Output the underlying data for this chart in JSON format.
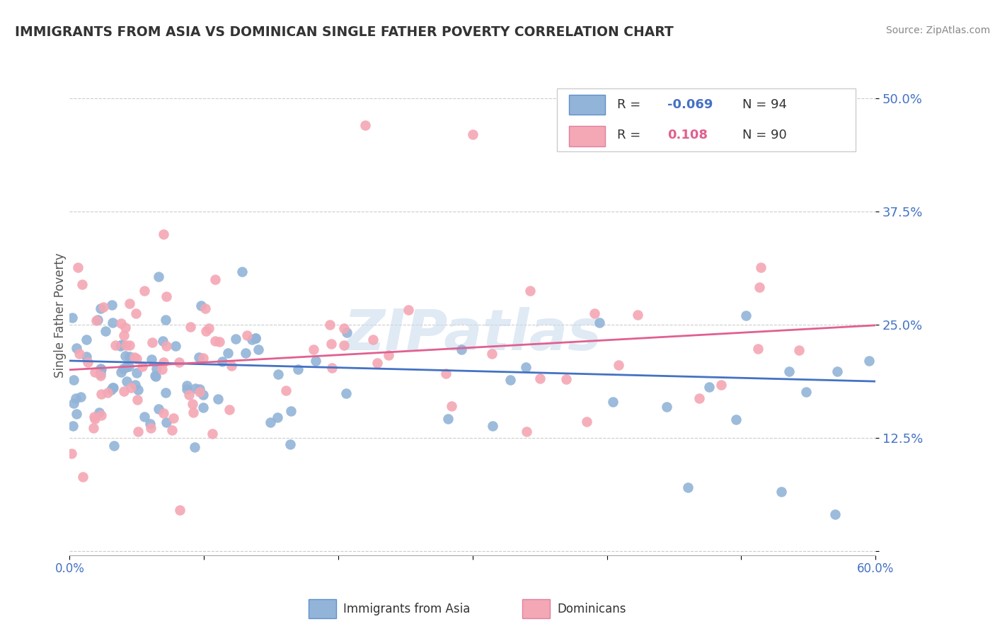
{
  "title": "IMMIGRANTS FROM ASIA VS DOMINICAN SINGLE FATHER POVERTY CORRELATION CHART",
  "source": "Source: ZipAtlas.com",
  "ylabel": "Single Father Poverty",
  "y_tick_vals": [
    0.0,
    0.125,
    0.25,
    0.375,
    0.5
  ],
  "y_tick_labels": [
    "",
    "12.5%",
    "25.0%",
    "37.5%",
    "50.0%"
  ],
  "x_lim": [
    0.0,
    0.6
  ],
  "y_lim": [
    -0.005,
    0.525
  ],
  "legend_r1_prefix": "R = ",
  "legend_r1_val": "-0.069",
  "legend_n1": "N = 94",
  "legend_r2_prefix": "R =  ",
  "legend_r2_val": "0.108",
  "legend_n2": "N = 90",
  "blue_color": "#92B4D8",
  "pink_color": "#F4A7B4",
  "blue_line_color": "#4472C4",
  "pink_line_color": "#E06090",
  "r1_color": "#4472C4",
  "r2_color": "#E06090",
  "watermark_text": "ZIPatlas",
  "watermark_color": "#CCDDEE",
  "background_color": "#FFFFFF",
  "grid_color": "#CCCCCC",
  "legend1_label": "Immigrants from Asia",
  "legend2_label": "Dominicans",
  "title_color": "#333333",
  "source_color": "#888888",
  "ytick_color": "#4472C4",
  "xtick_color": "#4472C4",
  "label_color": "#555555"
}
